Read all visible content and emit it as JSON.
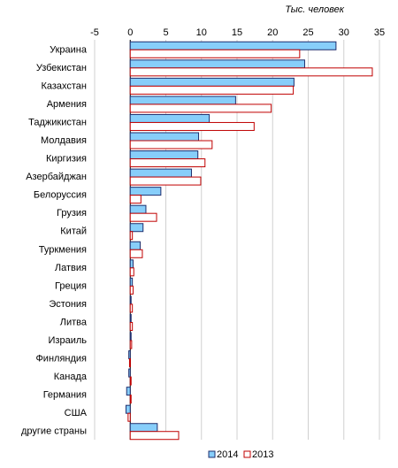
{
  "chart_data": {
    "type": "bar",
    "orientation": "horizontal",
    "unit_label": "Тыс. человек",
    "categories": [
      "Украина",
      "Узбекистан",
      "Казахстан",
      "Армения",
      "Таджикистан",
      "Молдавия",
      "Киргизия",
      "Азербайджан",
      "Белоруссия",
      "Грузия",
      "Китай",
      "Туркмения",
      "Латвия",
      "Греция",
      "Эстония",
      "Литва",
      "Израиль",
      "Финляндия",
      "Канада",
      "Германия",
      "США",
      "другие страны"
    ],
    "series": [
      {
        "name": "2014",
        "color": "#87cefa",
        "border": "#1f2f6e",
        "values": [
          28.9,
          24.5,
          23.0,
          14.8,
          11.1,
          9.6,
          9.5,
          8.6,
          4.3,
          2.2,
          1.8,
          1.4,
          0.4,
          0.3,
          0.1,
          0.1,
          0.1,
          -0.2,
          -0.2,
          -0.5,
          -0.6,
          3.8
        ]
      },
      {
        "name": "2013",
        "color": "#ffffff",
        "border": "#c00000",
        "values": [
          23.8,
          34.0,
          22.9,
          19.8,
          17.4,
          11.5,
          10.5,
          9.9,
          1.5,
          3.7,
          0.3,
          1.7,
          0.5,
          0.4,
          0.3,
          0.3,
          0.2,
          -0.1,
          0.1,
          0.1,
          -0.3,
          6.8
        ]
      }
    ],
    "xlim": [
      -5,
      35
    ],
    "xticks": [
      "-5",
      "0",
      "5",
      "10",
      "15",
      "20",
      "25",
      "30",
      "35"
    ],
    "grid": true,
    "legend_position": "bottom"
  }
}
